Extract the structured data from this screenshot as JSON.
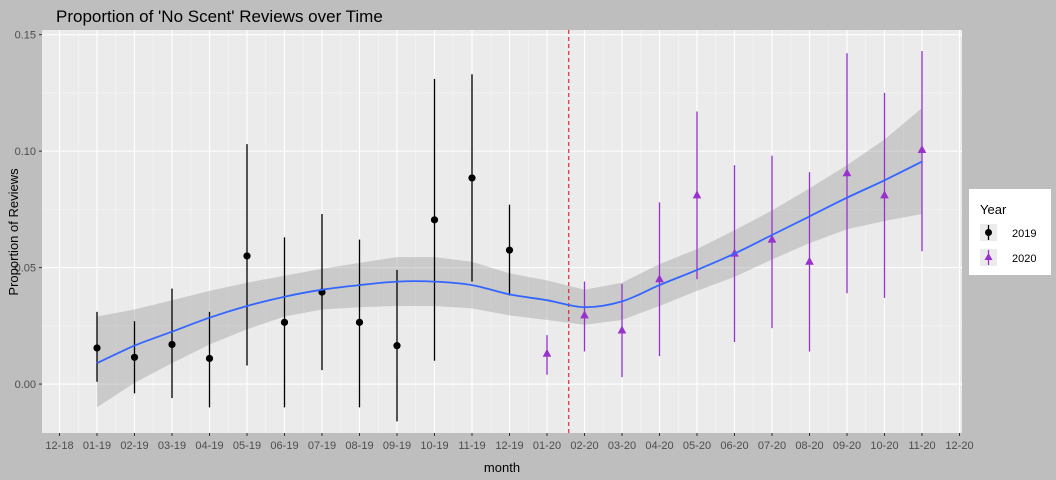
{
  "chart_data": {
    "type": "scatter",
    "title": "Proportion of 'No Scent' Reviews over Time",
    "xlabel": "month",
    "ylabel": "Proportion of Reviews",
    "x_ticks": [
      "12-18",
      "01-19",
      "02-19",
      "03-19",
      "04-19",
      "05-19",
      "06-19",
      "07-19",
      "08-19",
      "09-19",
      "10-19",
      "11-19",
      "12-19",
      "01-20",
      "02-20",
      "03-20",
      "04-20",
      "05-20",
      "06-20",
      "07-20",
      "08-20",
      "09-20",
      "10-20",
      "11-20",
      "12-20"
    ],
    "y_ticks": [
      0.0,
      0.05,
      0.1,
      0.15
    ],
    "y_tick_labels": [
      "0.00",
      "0.05",
      "0.10",
      "0.15"
    ],
    "ylim": [
      -0.021,
      0.152
    ],
    "grid": true,
    "vline": {
      "x": "01-20",
      "offset_months": 0.58,
      "color": "#e41a1c",
      "style": "dashed"
    },
    "legend": {
      "title": "Year",
      "position": "right",
      "entries": [
        {
          "label": "2019",
          "color": "#000000",
          "shape": "circle"
        },
        {
          "label": "2020",
          "color": "#9932cc",
          "shape": "triangle"
        }
      ]
    },
    "series": [
      {
        "name": "2019",
        "color": "#000000",
        "shape": "circle",
        "points": [
          {
            "x": "01-19",
            "y": 0.0155,
            "ymin": 0.001,
            "ymax": 0.031
          },
          {
            "x": "02-19",
            "y": 0.0115,
            "ymin": -0.004,
            "ymax": 0.027
          },
          {
            "x": "03-19",
            "y": 0.017,
            "ymin": -0.006,
            "ymax": 0.041
          },
          {
            "x": "04-19",
            "y": 0.011,
            "ymin": -0.01,
            "ymax": 0.031
          },
          {
            "x": "05-19",
            "y": 0.055,
            "ymin": 0.008,
            "ymax": 0.103
          },
          {
            "x": "06-19",
            "y": 0.0265,
            "ymin": -0.01,
            "ymax": 0.063
          },
          {
            "x": "07-19",
            "y": 0.0395,
            "ymin": 0.006,
            "ymax": 0.073
          },
          {
            "x": "08-19",
            "y": 0.0265,
            "ymin": -0.01,
            "ymax": 0.062
          },
          {
            "x": "09-19",
            "y": 0.0165,
            "ymin": -0.016,
            "ymax": 0.049
          },
          {
            "x": "10-19",
            "y": 0.0705,
            "ymin": 0.01,
            "ymax": 0.131
          },
          {
            "x": "11-19",
            "y": 0.0885,
            "ymin": 0.044,
            "ymax": 0.133
          },
          {
            "x": "12-19",
            "y": 0.0575,
            "ymin": 0.038,
            "ymax": 0.077
          }
        ]
      },
      {
        "name": "2020",
        "color": "#9932cc",
        "shape": "triangle",
        "points": [
          {
            "x": "01-20",
            "y": 0.013,
            "ymin": 0.004,
            "ymax": 0.021
          },
          {
            "x": "02-20",
            "y": 0.0295,
            "ymin": 0.014,
            "ymax": 0.044
          },
          {
            "x": "03-20",
            "y": 0.023,
            "ymin": 0.003,
            "ymax": 0.043
          },
          {
            "x": "04-20",
            "y": 0.045,
            "ymin": 0.012,
            "ymax": 0.078
          },
          {
            "x": "05-20",
            "y": 0.081,
            "ymin": 0.045,
            "ymax": 0.117
          },
          {
            "x": "06-20",
            "y": 0.056,
            "ymin": 0.018,
            "ymax": 0.094
          },
          {
            "x": "07-20",
            "y": 0.062,
            "ymin": 0.024,
            "ymax": 0.098
          },
          {
            "x": "08-20",
            "y": 0.0525,
            "ymin": 0.014,
            "ymax": 0.091
          },
          {
            "x": "09-20",
            "y": 0.0905,
            "ymin": 0.039,
            "ymax": 0.142
          },
          {
            "x": "10-20",
            "y": 0.081,
            "ymin": 0.037,
            "ymax": 0.125
          },
          {
            "x": "11-20",
            "y": 0.1005,
            "ymin": 0.057,
            "ymax": 0.143
          }
        ]
      }
    ],
    "smooth": {
      "color": "#3366ff",
      "band_color": "#999999",
      "points": [
        {
          "x": "01-19",
          "y": 0.009,
          "lo": -0.01,
          "hi": 0.029
        },
        {
          "x": "02-19",
          "y": 0.0165,
          "lo": 0.0005,
          "hi": 0.032
        },
        {
          "x": "03-19",
          "y": 0.0225,
          "lo": 0.009,
          "hi": 0.036
        },
        {
          "x": "04-19",
          "y": 0.0285,
          "lo": 0.017,
          "hi": 0.04
        },
        {
          "x": "05-19",
          "y": 0.0335,
          "lo": 0.0235,
          "hi": 0.0435
        },
        {
          "x": "06-19",
          "y": 0.0375,
          "lo": 0.029,
          "hi": 0.0465
        },
        {
          "x": "07-19",
          "y": 0.0405,
          "lo": 0.032,
          "hi": 0.0495
        },
        {
          "x": "08-19",
          "y": 0.0425,
          "lo": 0.033,
          "hi": 0.052
        },
        {
          "x": "09-19",
          "y": 0.044,
          "lo": 0.0335,
          "hi": 0.0545
        },
        {
          "x": "10-19",
          "y": 0.044,
          "lo": 0.0335,
          "hi": 0.0545
        },
        {
          "x": "11-19",
          "y": 0.0425,
          "lo": 0.0325,
          "hi": 0.0525
        },
        {
          "x": "12-19",
          "y": 0.0385,
          "lo": 0.0295,
          "hi": 0.0475
        },
        {
          "x": "01-20",
          "y": 0.036,
          "lo": 0.0275,
          "hi": 0.0445
        },
        {
          "x": "02-20",
          "y": 0.033,
          "lo": 0.0255,
          "hi": 0.0405
        },
        {
          "x": "03-20",
          "y": 0.0355,
          "lo": 0.0275,
          "hi": 0.0435
        },
        {
          "x": "04-20",
          "y": 0.0425,
          "lo": 0.0335,
          "hi": 0.0515
        },
        {
          "x": "05-20",
          "y": 0.049,
          "lo": 0.04,
          "hi": 0.058
        },
        {
          "x": "06-20",
          "y": 0.056,
          "lo": 0.046,
          "hi": 0.066
        },
        {
          "x": "07-20",
          "y": 0.064,
          "lo": 0.0535,
          "hi": 0.0745
        },
        {
          "x": "08-20",
          "y": 0.072,
          "lo": 0.0605,
          "hi": 0.084
        },
        {
          "x": "09-20",
          "y": 0.08,
          "lo": 0.0665,
          "hi": 0.094
        },
        {
          "x": "10-20",
          "y": 0.0875,
          "lo": 0.07,
          "hi": 0.105
        },
        {
          "x": "11-20",
          "y": 0.0955,
          "lo": 0.073,
          "hi": 0.1185
        }
      ]
    }
  }
}
